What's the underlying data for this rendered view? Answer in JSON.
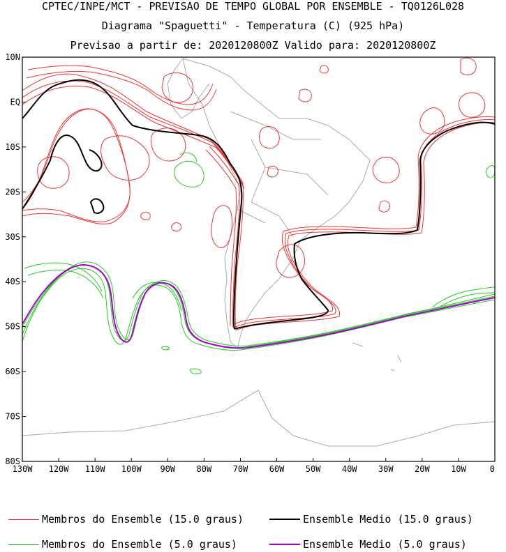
{
  "titles": {
    "line1": "CPTEC/INPE/MCT - PREVISAO DE TEMPO GLOBAL POR ENSEMBLE - TQ0126L028",
    "line2": "Diagrama \"Spaguetti\" - Temperatura (C) (925 hPa)",
    "line3": "Previsao a partir de: 2020120800Z  Valido para: 2020120800Z"
  },
  "map": {
    "lat_ticks": [
      "10N",
      "EQ",
      "10S",
      "20S",
      "30S",
      "40S",
      "50S",
      "60S",
      "70S",
      "80S"
    ],
    "lon_ticks": [
      "130W",
      "120W",
      "110W",
      "100W",
      "90W",
      "80W",
      "70W",
      "60W",
      "50W",
      "40W",
      "30W",
      "20W",
      "10W",
      "0"
    ],
    "lat_range": [
      -80,
      10
    ],
    "lon_range": [
      -130,
      0
    ],
    "colors": {
      "members_15": "#ee3333",
      "mean_15": "#000000",
      "members_5": "#22cc22",
      "mean_5": "#aa00cc",
      "coast": "#aaaaaa"
    }
  },
  "legend": [
    {
      "label": "Membros do Ensemble (15.0 graus)",
      "color": "#ee3333",
      "width": 1
    },
    {
      "label": "Ensemble Medio (15.0 graus)",
      "color": "#000000",
      "width": 2
    },
    {
      "label": "Membros do Ensemble (5.0 graus)",
      "color": "#22cc22",
      "width": 1
    },
    {
      "label": "Ensemble Medio (5.0 graus)",
      "color": "#aa00cc",
      "width": 2
    }
  ]
}
